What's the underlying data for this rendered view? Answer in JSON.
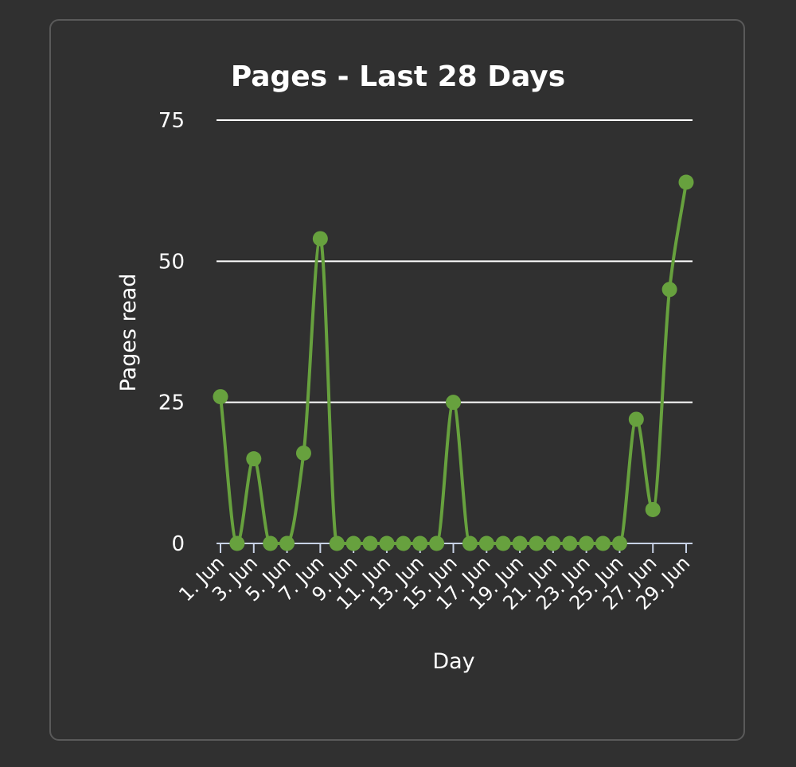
{
  "chart_data": {
    "type": "line",
    "title": "Pages - Last 28 Days",
    "xlabel": "Day",
    "ylabel": "Pages read",
    "ylim": [
      0,
      75
    ],
    "yticks": [
      0,
      25,
      50,
      75
    ],
    "xticks": [
      "1. Jun",
      "3. Jun",
      "5. Jun",
      "7. Jun",
      "9. Jun",
      "11. Jun",
      "13. Jun",
      "15. Jun",
      "17. Jun",
      "19. Jun",
      "21. Jun",
      "23. Jun",
      "25. Jun",
      "27. Jun",
      "29. Jun"
    ],
    "grid": true,
    "legend": "none",
    "series": [
      {
        "color": "#67a13e",
        "points": [
          {
            "x": "1. Jun",
            "y": 26
          },
          {
            "x": "2. Jun",
            "y": 0
          },
          {
            "x": "3. Jun",
            "y": 15
          },
          {
            "x": "4. Jun",
            "y": 0
          },
          {
            "x": "5. Jun",
            "y": 0
          },
          {
            "x": "6. Jun",
            "y": 16
          },
          {
            "x": "7. Jun",
            "y": 54
          },
          {
            "x": "8. Jun",
            "y": 0
          },
          {
            "x": "9. Jun",
            "y": 0
          },
          {
            "x": "10. Jun",
            "y": 0
          },
          {
            "x": "11. Jun",
            "y": 0
          },
          {
            "x": "12. Jun",
            "y": 0
          },
          {
            "x": "13. Jun",
            "y": 0
          },
          {
            "x": "14. Jun",
            "y": 0
          },
          {
            "x": "15. Jun",
            "y": 25
          },
          {
            "x": "16. Jun",
            "y": 0
          },
          {
            "x": "17. Jun",
            "y": 0
          },
          {
            "x": "18. Jun",
            "y": 0
          },
          {
            "x": "19. Jun",
            "y": 0
          },
          {
            "x": "20. Jun",
            "y": 0
          },
          {
            "x": "21. Jun",
            "y": 0
          },
          {
            "x": "22. Jun",
            "y": 0
          },
          {
            "x": "23. Jun",
            "y": 0
          },
          {
            "x": "24. Jun",
            "y": 0
          },
          {
            "x": "25. Jun",
            "y": 0
          },
          {
            "x": "26. Jun",
            "y": 22
          },
          {
            "x": "27. Jun",
            "y": 6
          },
          {
            "x": "28. Jun",
            "y": 45
          },
          {
            "x": "29. Jun",
            "y": 64
          }
        ]
      }
    ]
  }
}
